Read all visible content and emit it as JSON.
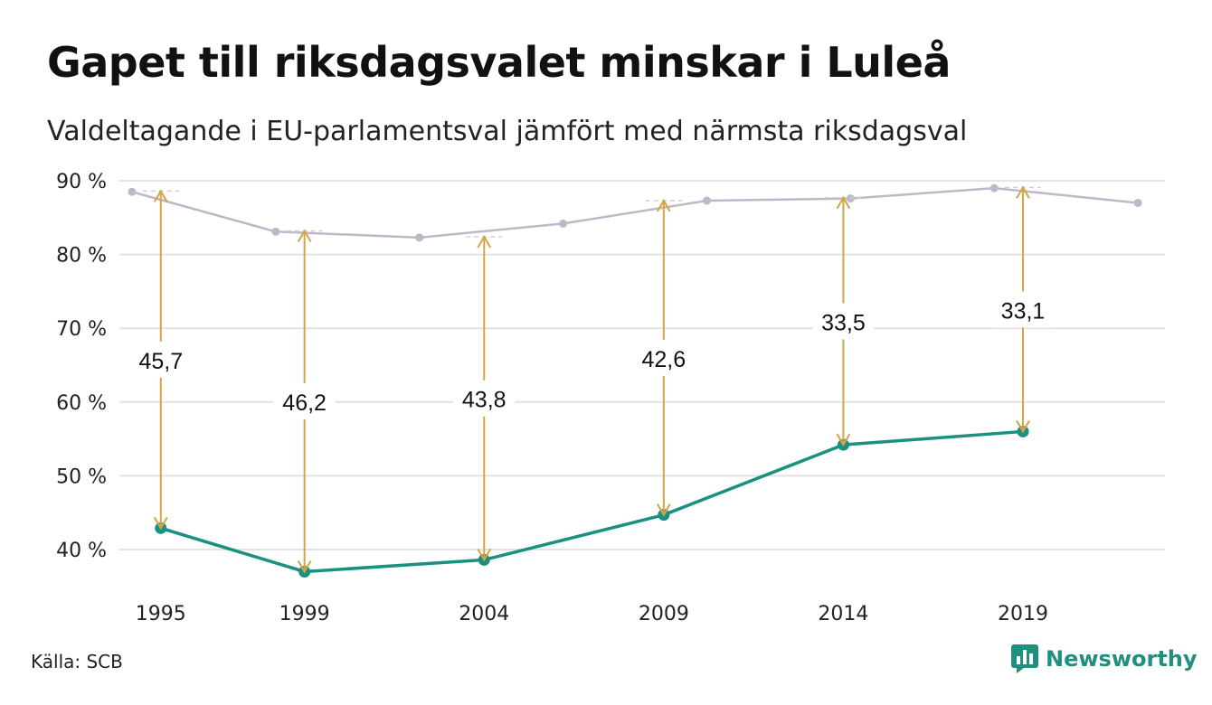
{
  "title": "Gapet till riksdagsvalet minskar i Luleå",
  "subtitle": "Valdeltagande i EU-parlamentsval jämfört med närmsta riksdagsval",
  "source": "Källa: SCB",
  "brand": "Newsworthy",
  "colors": {
    "eu_line": "#1a9080",
    "riksdag_line": "#bdb8c8",
    "arrow": "#d4a446",
    "grid": "#e2e2e2"
  },
  "chart_data": {
    "type": "line",
    "title": "Gapet till riksdagsvalet minskar i Luleå",
    "subtitle": "Valdeltagande i EU-parlamentsval jämfört med närmsta riksdagsval",
    "ylim": [
      37,
      90
    ],
    "xlim": [
      1994.2,
      2022.6
    ],
    "y_ticks": [
      40,
      50,
      60,
      70,
      80,
      90
    ],
    "y_tick_labels": [
      "40 %",
      "50 %",
      "60 %",
      "70 %",
      "80 %",
      "90 %"
    ],
    "x_ticks": [
      1995,
      1999,
      2004,
      2009,
      2014,
      2019
    ],
    "x_tick_labels": [
      "1995",
      "1999",
      "2004",
      "2009",
      "2014",
      "2019"
    ],
    "grid": true,
    "series": [
      {
        "key": "riksdag",
        "x": [
          1994.2,
          1998.2,
          2002.2,
          2006.2,
          2010.2,
          2014.2,
          2018.2,
          2022.2
        ],
        "y": [
          88.5,
          83.1,
          82.3,
          84.2,
          87.3,
          87.6,
          89.0,
          87.0
        ]
      },
      {
        "key": "eu",
        "x": [
          1995,
          1999,
          2004,
          2009,
          2014,
          2019
        ],
        "y": [
          42.9,
          37.0,
          38.6,
          44.7,
          54.2,
          56.0
        ]
      }
    ],
    "gaps": [
      {
        "x": 1995,
        "from": 42.9,
        "to": 88.6,
        "label": "45,7"
      },
      {
        "x": 1999,
        "from": 37.0,
        "to": 83.2,
        "label": "46,2"
      },
      {
        "x": 2004,
        "from": 38.6,
        "to": 82.4,
        "label": "43,8"
      },
      {
        "x": 2009,
        "from": 44.7,
        "to": 87.3,
        "label": "42,6"
      },
      {
        "x": 2014,
        "from": 54.2,
        "to": 87.7,
        "label": "33,5"
      },
      {
        "x": 2019,
        "from": 56.0,
        "to": 89.1,
        "label": "33,1"
      }
    ]
  }
}
